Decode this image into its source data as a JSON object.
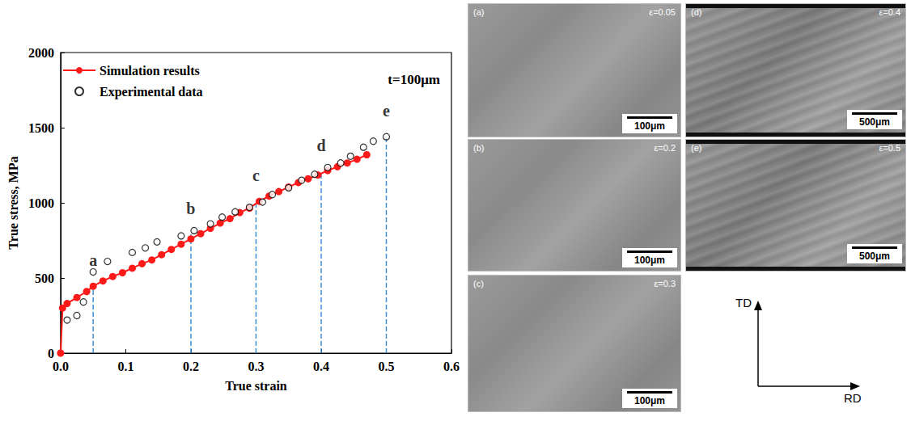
{
  "chart_data": {
    "type": "line",
    "annotations": [
      "t=100μm"
    ],
    "xlabel": "True strain",
    "ylabel": "True stress, MPa",
    "xlim": [
      0,
      0.6
    ],
    "xticks": [
      {
        "value": 0,
        "label": "0.0"
      },
      0.1,
      0.2,
      0.3,
      0.4,
      0.5,
      0.6
    ],
    "ylim": [
      0,
      2000
    ],
    "yticks": [
      0,
      500,
      1000,
      1500,
      2000
    ],
    "grid": false,
    "legend": "upper left",
    "series": [
      {
        "name": "Simulation results",
        "type": "line",
        "color": "#ff1a1a",
        "marker": "circle",
        "line_style": "solid",
        "x": [
          0,
          0.003,
          0.01,
          0.025,
          0.04,
          0.05,
          0.065,
          0.08,
          0.095,
          0.11,
          0.125,
          0.14,
          0.155,
          0.17,
          0.185,
          0.2,
          0.215,
          0.23,
          0.245,
          0.26,
          0.275,
          0.29,
          0.305,
          0.32,
          0.335,
          0.35,
          0.365,
          0.38,
          0.395,
          0.41,
          0.425,
          0.44,
          0.455,
          0.47
        ],
        "values": [
          0,
          300,
          330,
          370,
          410,
          445,
          480,
          510,
          535,
          565,
          595,
          620,
          655,
          690,
          725,
          760,
          795,
          830,
          865,
          895,
          935,
          965,
          1010,
          1045,
          1075,
          1105,
          1135,
          1160,
          1185,
          1215,
          1240,
          1265,
          1290,
          1320
        ]
      },
      {
        "name": "Experimental data",
        "type": "scatter",
        "color": "#000000",
        "marker": "open_circle",
        "x": [
          0.01,
          0.025,
          0.035,
          0.05,
          0.072,
          0.11,
          0.13,
          0.148,
          0.185,
          0.205,
          0.23,
          0.248,
          0.268,
          0.29,
          0.31,
          0.325,
          0.35,
          0.37,
          0.39,
          0.41,
          0.43,
          0.445,
          0.465,
          0.48,
          0.5
        ],
        "values": [
          220,
          250,
          340,
          540,
          610,
          670,
          700,
          740,
          780,
          815,
          860,
          905,
          940,
          970,
          1005,
          1055,
          1100,
          1150,
          1190,
          1235,
          1265,
          1310,
          1370,
          1410,
          1440
        ]
      }
    ],
    "reference_lines": {
      "color": "#3c8dd6",
      "line_style": "dashed",
      "x": [
        0.05,
        0.2,
        0.3,
        0.4,
        0.5
      ],
      "values": [
        445,
        790,
        1010,
        1210,
        1440
      ],
      "labels": [
        "a",
        "b",
        "c",
        "d",
        "e"
      ]
    }
  },
  "micrographs": [
    {
      "label": "(a)",
      "strain": "ε=0.05",
      "scale_bar": "100μm"
    },
    {
      "label": "(b)",
      "strain": "ε=0.2",
      "scale_bar": "100μm"
    },
    {
      "label": "(c)",
      "strain": "ε=0.3",
      "scale_bar": "100μm"
    },
    {
      "label": "(d)",
      "strain": "ε=0.4",
      "scale_bar": "500μm"
    },
    {
      "label": "(e)",
      "strain": "ε=0.5",
      "scale_bar": "500μm"
    }
  ],
  "directions": {
    "vertical": "TD",
    "horizontal": "RD"
  }
}
